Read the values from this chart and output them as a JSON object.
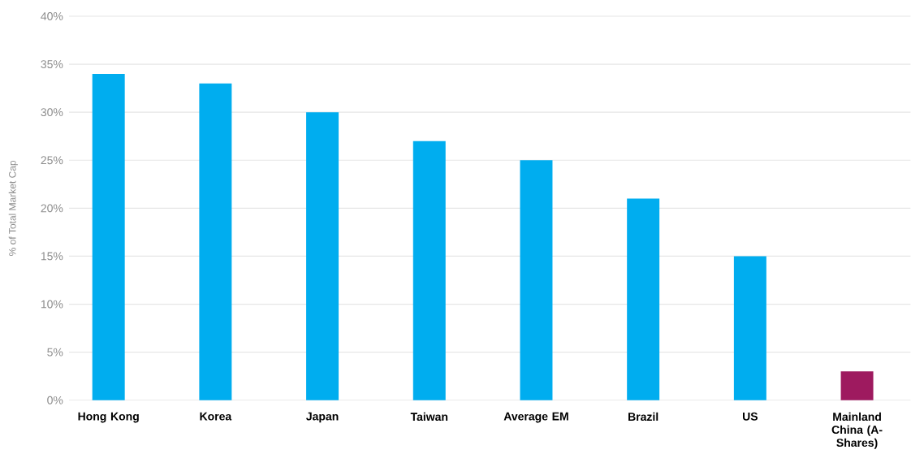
{
  "chart_data": {
    "type": "bar",
    "ylabel": "% of Total Market Cap",
    "categories": [
      "Hong Kong",
      "Korea",
      "Japan",
      "Taiwan",
      "Average EM",
      "Brazil",
      "US",
      "Mainland China (A-Shares)"
    ],
    "values": [
      34,
      33,
      30,
      27,
      25,
      21,
      15,
      3
    ],
    "colors": [
      "#00adef",
      "#00adef",
      "#00adef",
      "#00adef",
      "#00adef",
      "#00adef",
      "#00adef",
      "#9e1a5f"
    ],
    "ylim": [
      0,
      40
    ],
    "yticks": [
      {
        "value": 0,
        "label": "0%"
      },
      {
        "value": 5,
        "label": "5%"
      },
      {
        "value": 10,
        "label": "10%"
      },
      {
        "value": 15,
        "label": "15%"
      },
      {
        "value": 20,
        "label": "20%"
      },
      {
        "value": 25,
        "label": "25%"
      },
      {
        "value": 30,
        "label": "30%"
      },
      {
        "value": 35,
        "label": "35%"
      },
      {
        "value": 40,
        "label": "40%"
      }
    ],
    "grid": "y"
  }
}
